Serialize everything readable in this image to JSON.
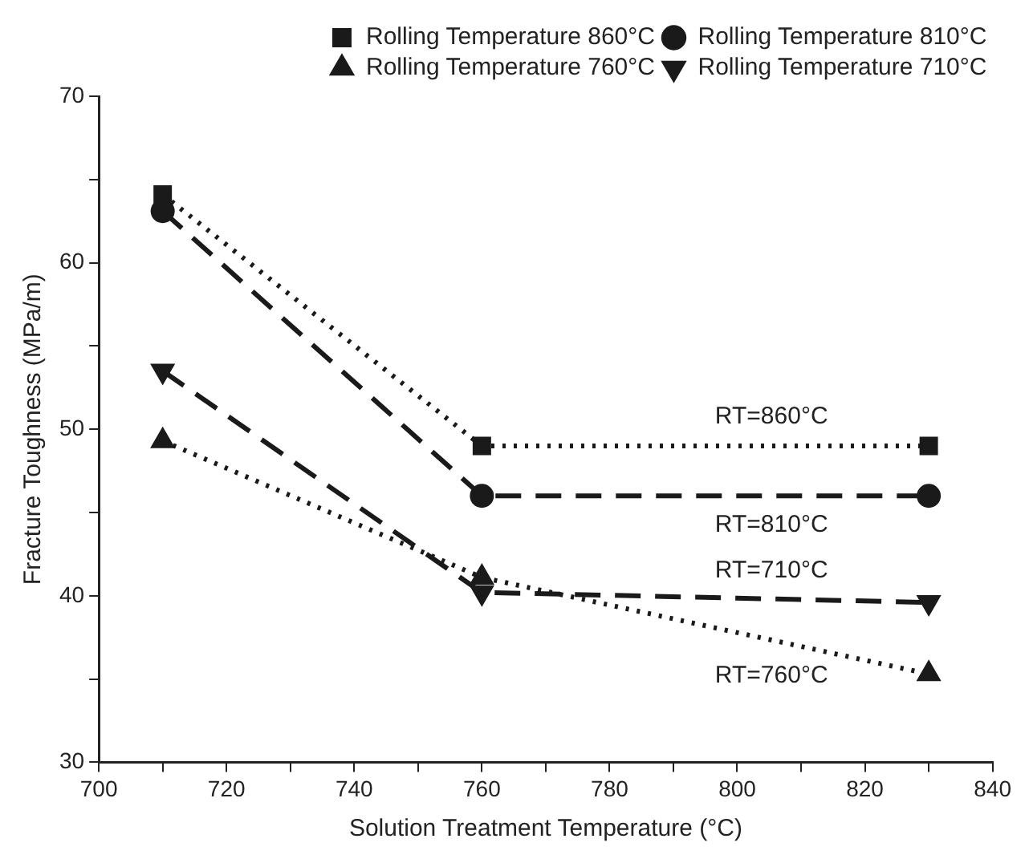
{
  "chart_data": {
    "type": "line",
    "xlabel": "Solution Treatment Temperature (°C)",
    "ylabel": "Fracture Toughness (MPa/m)",
    "x": [
      710,
      760,
      830
    ],
    "series": [
      {
        "name": "Rolling Temperature 860°C",
        "color": "#1a1a1a",
        "values": [
          64.1,
          49,
          49
        ],
        "marker": "square",
        "line_style": "dotted"
      },
      {
        "name": "Rolling Temperature 810°C",
        "color": "#1a1a1a",
        "values": [
          63.1,
          46,
          46
        ],
        "marker": "circle",
        "line_style": "dashed"
      },
      {
        "name": "Rolling Temperature 760°C",
        "color": "#1a1a1a",
        "values": [
          49.3,
          41.1,
          35.3
        ],
        "marker": "triangle",
        "line_style": "dotted"
      },
      {
        "name": "Rolling Temperature 710°C",
        "color": "#1a1a1a",
        "values": [
          53.5,
          40.2,
          39.6
        ],
        "marker": "triangle-down",
        "line_style": "dashed"
      }
    ],
    "xlim": [
      700,
      840
    ],
    "xticks": [
      700,
      {
        "value": 710,
        "label": null
      },
      720,
      {
        "value": 730,
        "label": null
      },
      740,
      {
        "value": 750,
        "label": null
      },
      760,
      {
        "value": 770,
        "label": null
      },
      780,
      {
        "value": 790,
        "label": null
      },
      800,
      {
        "value": 810,
        "label": null
      },
      820,
      {
        "value": 830,
        "label": null
      },
      840
    ],
    "ylim": [
      30,
      70
    ],
    "yticks": [
      30,
      {
        "value": 35,
        "label": null
      },
      40,
      {
        "value": 45,
        "label": null
      },
      50,
      {
        "value": 55,
        "label": null
      },
      60,
      {
        "value": 65,
        "label": null
      },
      70
    ],
    "grid": false,
    "legend": "top right",
    "annotations": [
      "RT=860°C",
      "RT=810°C",
      "RT=760°C",
      "RT=710°C"
    ]
  }
}
